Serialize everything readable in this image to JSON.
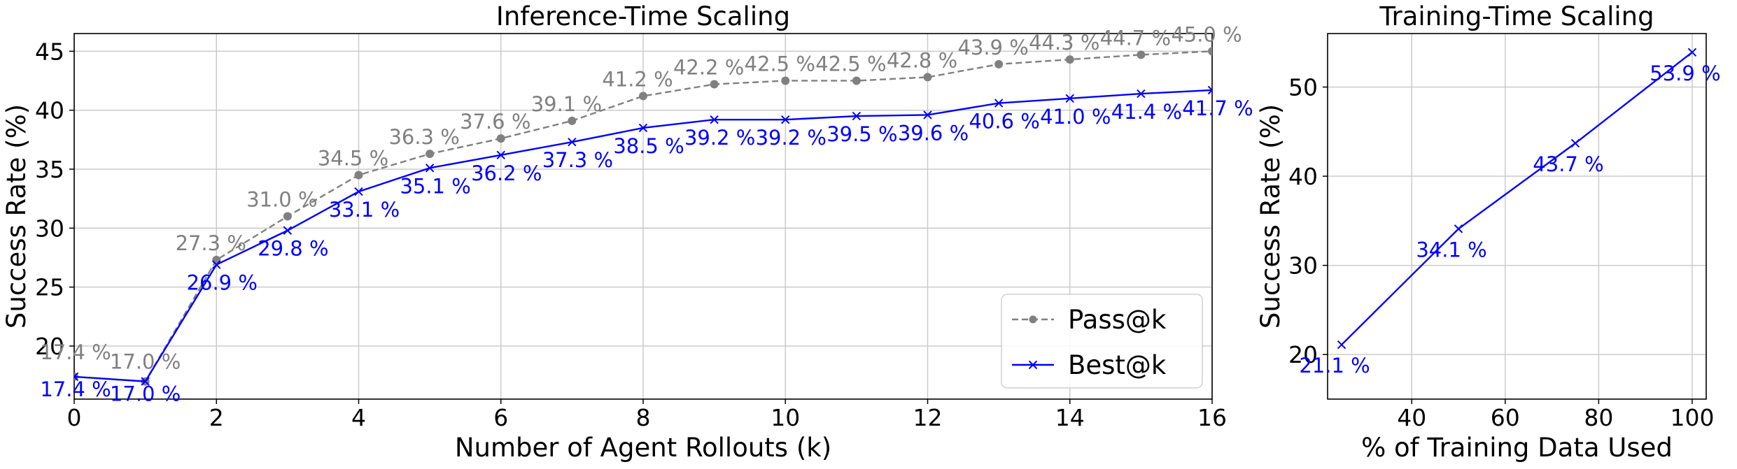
{
  "chart_data": [
    {
      "type": "line",
      "title": "Inference-Time Scaling",
      "xlabel": "Number of Agent Rollouts (k)",
      "ylabel": "Success Rate (%)",
      "xlim": [
        0,
        16
      ],
      "ylim": [
        15.5,
        46.5
      ],
      "xticks": [
        0,
        2,
        4,
        6,
        8,
        10,
        12,
        14,
        16
      ],
      "xtick_labels": [
        "0",
        "2",
        "4",
        "6",
        "8",
        "10",
        "12",
        "14",
        "16"
      ],
      "yticks": [
        20,
        25,
        30,
        35,
        40,
        45
      ],
      "ytick_labels": [
        "20",
        "25",
        "30",
        "35",
        "40",
        "45"
      ],
      "grid": true,
      "legend": "bottom-right",
      "x": [
        0,
        1,
        2,
        3,
        4,
        5,
        6,
        7,
        8,
        9,
        10,
        11,
        12,
        13,
        14,
        15,
        16
      ],
      "series": [
        {
          "name": "Pass@k",
          "color": "#808080",
          "style": "dashed",
          "marker": "circle",
          "values": [
            17.4,
            17.0,
            27.3,
            31.0,
            34.5,
            36.3,
            37.6,
            39.1,
            41.2,
            42.2,
            42.5,
            42.5,
            42.8,
            43.9,
            44.3,
            44.7,
            45.0
          ],
          "labels": [
            "17.4 %",
            "17.0 %",
            "27.3 %",
            "31.0 %",
            "34.5 %",
            "36.3 %",
            "37.6 %",
            "39.1 %",
            "41.2 %",
            "42.2 %",
            "42.5 %",
            "42.5 %",
            "42.8 %",
            "43.9 %",
            "44.3 %",
            "44.7 %",
            "45.0 %"
          ]
        },
        {
          "name": "Best@k",
          "color": "#0000ff",
          "style": "solid",
          "marker": "x",
          "values": [
            17.4,
            17.0,
            26.9,
            29.8,
            33.1,
            35.1,
            36.2,
            37.3,
            38.5,
            39.2,
            39.2,
            39.5,
            39.6,
            40.6,
            41.0,
            41.4,
            41.7
          ],
          "labels": [
            "17.4 %",
            "17.0 %",
            "26.9 %",
            "29.8 %",
            "33.1 %",
            "35.1 %",
            "36.2 %",
            "37.3 %",
            "38.5 %",
            "39.2 %",
            "39.2 %",
            "39.5 %",
            "39.6 %",
            "40.6 %",
            "41.0 %",
            "41.4 %",
            "41.7 %"
          ]
        }
      ]
    },
    {
      "type": "line",
      "title": "Training-Time Scaling",
      "xlabel": "% of Training Data Used",
      "ylabel": "Success Rate (%)",
      "xlim": [
        22,
        103
      ],
      "ylim": [
        15,
        56
      ],
      "xticks": [
        40,
        60,
        80,
        100
      ],
      "xtick_labels": [
        "40",
        "60",
        "80",
        "100"
      ],
      "yticks": [
        20,
        30,
        40,
        50
      ],
      "ytick_labels": [
        "20",
        "30",
        "40",
        "50"
      ],
      "grid": true,
      "x": [
        25,
        50,
        75,
        100
      ],
      "series": [
        {
          "color": "#0000ff",
          "style": "solid",
          "marker": "x",
          "values": [
            21.1,
            34.1,
            43.7,
            53.9
          ],
          "labels": [
            "21.1 %",
            "34.1 %",
            "43.7 %",
            "53.9 %"
          ]
        }
      ]
    }
  ]
}
